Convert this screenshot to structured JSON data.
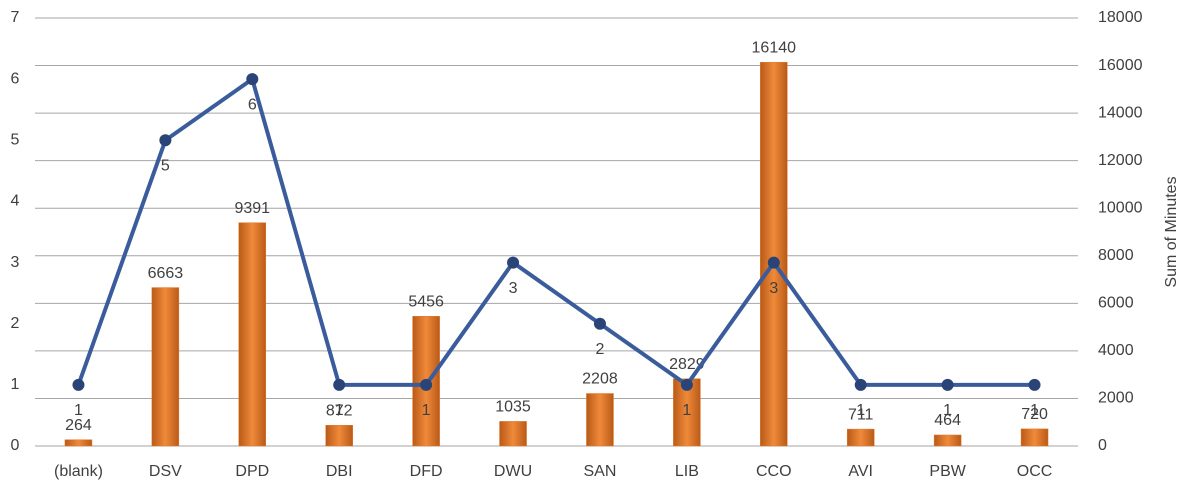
{
  "chart_data": {
    "type": "bar-line",
    "categories": [
      "(blank)",
      "DSV",
      "DPD",
      "DBI",
      "DFD",
      "DWU",
      "SAN",
      "LIB",
      "CCO",
      "AVI",
      "PBW",
      "OCC"
    ],
    "series": [
      {
        "type": "bar",
        "axis": "y2",
        "color": "#e57a2c",
        "values": [
          264,
          6663,
          9391,
          872,
          5456,
          1035,
          2208,
          2829,
          16140,
          711,
          464,
          720
        ]
      },
      {
        "type": "line",
        "axis": "y",
        "color": "#3b5c9c",
        "values": [
          1,
          5,
          6,
          1,
          1,
          3,
          2,
          1,
          3,
          1,
          1,
          1
        ]
      }
    ],
    "ylim": [
      0,
      7
    ],
    "yticks": [
      0,
      1,
      2,
      3,
      4,
      5,
      6,
      7
    ],
    "y2lim": [
      0,
      18000
    ],
    "y2ticks": [
      0,
      2000,
      4000,
      6000,
      8000,
      10000,
      12000,
      14000,
      16000,
      18000
    ],
    "y2_label": "Sum of Minutes",
    "grid": true
  }
}
